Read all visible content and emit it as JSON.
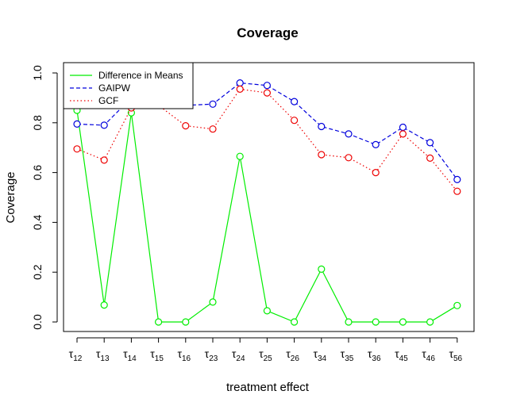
{
  "chart_data": {
    "type": "line",
    "title": "Coverage",
    "xlabel": "treatment effect",
    "ylabel": "Coverage",
    "ylim": [
      0.0,
      1.0
    ],
    "yticks": [
      "0.0",
      "0.2",
      "0.4",
      "0.6",
      "0.8",
      "1.0"
    ],
    "categories": [
      "τ12",
      "τ13",
      "τ14",
      "τ15",
      "τ16",
      "τ23",
      "τ24",
      "τ25",
      "τ26",
      "τ34",
      "τ35",
      "τ36",
      "τ45",
      "τ46",
      "τ56"
    ],
    "category_base": [
      "τ",
      "τ",
      "τ",
      "τ",
      "τ",
      "τ",
      "τ",
      "τ",
      "τ",
      "τ",
      "τ",
      "τ",
      "τ",
      "τ",
      "τ"
    ],
    "category_sub": [
      "12",
      "13",
      "14",
      "15",
      "16",
      "23",
      "24",
      "25",
      "26",
      "34",
      "35",
      "36",
      "45",
      "46",
      "56"
    ],
    "legend_position": "top-left",
    "series": [
      {
        "name": "Difference in Means",
        "color": "#00ee00",
        "line_style": "solid",
        "values": [
          0.85,
          0.068,
          0.84,
          0.0,
          0.0,
          0.08,
          0.665,
          0.045,
          0.0,
          0.212,
          0.0,
          0.0,
          0.0,
          0.0,
          0.066
        ]
      },
      {
        "name": "GAIPW",
        "color": "#0000dd",
        "line_style": "dashed",
        "values": [
          0.795,
          0.79,
          0.9,
          0.88,
          0.87,
          0.875,
          0.96,
          0.95,
          0.885,
          0.785,
          0.755,
          0.712,
          0.782,
          0.72,
          0.572
        ]
      },
      {
        "name": "GCF",
        "color": "#ee0000",
        "line_style": "dotted",
        "values": [
          0.695,
          0.65,
          0.86,
          0.87,
          0.788,
          0.775,
          0.935,
          0.92,
          0.81,
          0.672,
          0.66,
          0.6,
          0.755,
          0.658,
          0.525
        ]
      }
    ]
  }
}
